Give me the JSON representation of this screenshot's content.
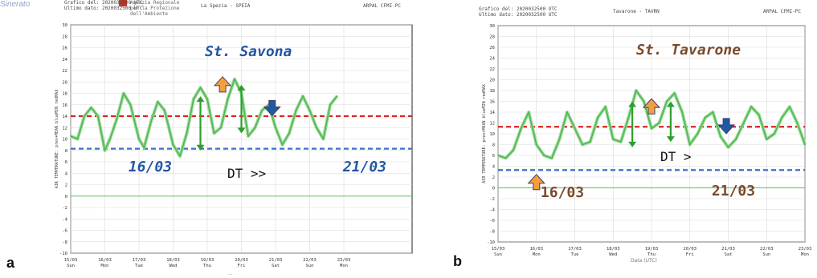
{
  "corner_text": "Sinerato",
  "colors": {
    "series": "#44bb44",
    "band": "#9bd59b",
    "red_line": "#dd2222",
    "blue_line": "#3b6fd0",
    "zero_line": "#5cc05c",
    "arrow_green": "#2e9e2e",
    "arrow_orange": "#f2a03c",
    "arrow_blue": "#1e5aa0",
    "label_blue": "#2456a4",
    "label_brown": "#7a4a2a"
  },
  "panels": [
    {
      "id": "a",
      "mark": "a",
      "header": {
        "left": "Grafico del: 2020032500 UTC\nUltimo dato: 2020032500 UTC",
        "org": "Agenzia Regionale\nper la Protezione\ndell'Ambiente",
        "center": "La Spezia - SPEIA",
        "right": "ARPAL CFMI-PC"
      },
      "bottom_note": "...",
      "annotations": {
        "station": "St. Savona",
        "date_start": "16/03",
        "date_end": "21/03",
        "dt": "DT >>"
      },
      "chart_data": {
        "type": "line",
        "ylabel": "AIR TEMPERATURE: prev+MEAN blueMIN redMAX",
        "ylim": [
          -10,
          30
        ],
        "yticks": [
          -10,
          -8,
          -6,
          -4,
          -2,
          0,
          2,
          4,
          6,
          8,
          10,
          12,
          14,
          16,
          18,
          20,
          22,
          24,
          26,
          28,
          30
        ],
        "xlim": [
          0,
          10
        ],
        "xticks": [
          {
            "x": 0,
            "date": "15/03",
            "day": "Sun"
          },
          {
            "x": 1,
            "date": "16/03",
            "day": "Mon"
          },
          {
            "x": 2,
            "date": "17/03",
            "day": "Tue"
          },
          {
            "x": 3,
            "date": "18/03",
            "day": "Wed"
          },
          {
            "x": 4,
            "date": "19/03",
            "day": "Thu"
          },
          {
            "x": 5,
            "date": "20/03",
            "day": "Fri"
          },
          {
            "x": 6,
            "date": "21/03",
            "day": "Sat"
          },
          {
            "x": 7,
            "date": "22/03",
            "day": "Sun"
          },
          {
            "x": 8,
            "date": "23/03",
            "day": "Mon"
          }
        ],
        "grid": true,
        "hlines": {
          "red": 14,
          "blue": 8.3,
          "zero": 0
        },
        "series": [
          {
            "x": [
              0,
              0.2,
              0.4,
              0.6,
              0.8,
              1,
              1.15,
              1.35,
              1.55,
              1.75,
              2,
              2.15,
              2.35,
              2.55,
              2.75,
              3,
              3.2,
              3.4,
              3.6,
              3.8,
              4,
              4.2,
              4.4,
              4.6,
              4.8,
              5,
              5.2,
              5.4,
              5.6,
              5.8,
              6,
              6.2,
              6.4,
              6.6,
              6.8,
              7,
              7.2,
              7.4,
              7.6,
              7.8
            ],
            "y": [
              10.5,
              10,
              14,
              15.5,
              14,
              8,
              10,
              13.5,
              18,
              16,
              10,
              8.5,
              13,
              16.5,
              15,
              9,
              7,
              11,
              17,
              19,
              17,
              11,
              12,
              17,
              20.5,
              18,
              10.5,
              12,
              15,
              16,
              12,
              9,
              11,
              15,
              17.5,
              15,
              12,
              10,
              16,
              17.5
            ]
          }
        ]
      },
      "arrows": [
        {
          "type": "double",
          "color": "green",
          "x": 3.8,
          "y1": 8,
          "y2": 17.5
        },
        {
          "type": "double",
          "color": "green",
          "x": 5,
          "y1": 11,
          "y2": 19.5
        },
        {
          "type": "up",
          "color": "orange",
          "x": 4.45,
          "y": 19.5
        },
        {
          "type": "down",
          "color": "blue",
          "x": 5.9,
          "y": 15.5
        }
      ]
    },
    {
      "id": "b",
      "mark": "b",
      "header": {
        "left": "Grafico del: 2020032500 UTC\nUltimo dato: 2020032500 UTC",
        "center": "Tavarone - TAVRN",
        "right": "ARPAL CFMI-PC"
      },
      "bottom_note": "Data (UTC)",
      "annotations": {
        "station": "St. Tavarone",
        "date_start": "16/03",
        "date_end": "21/03",
        "dt": "DT >"
      },
      "chart_data": {
        "type": "line",
        "ylabel": "AIR TEMPERATURE: prev+MEAN blueMIN redMAX",
        "ylim": [
          -10,
          30
        ],
        "yticks": [
          -10,
          -8,
          -6,
          -4,
          -2,
          0,
          2,
          4,
          6,
          8,
          10,
          12,
          14,
          16,
          18,
          20,
          22,
          24,
          26,
          28,
          30
        ],
        "xlim": [
          0,
          8
        ],
        "xticks": [
          {
            "x": 0,
            "date": "15/03",
            "day": "Sun"
          },
          {
            "x": 1,
            "date": "16/03",
            "day": "Mon"
          },
          {
            "x": 2,
            "date": "17/03",
            "day": "Tue"
          },
          {
            "x": 3,
            "date": "18/03",
            "day": "Wed"
          },
          {
            "x": 4,
            "date": "19/03",
            "day": "Thu"
          },
          {
            "x": 5,
            "date": "20/03",
            "day": "Fri"
          },
          {
            "x": 6,
            "date": "21/03",
            "day": "Sat"
          },
          {
            "x": 7,
            "date": "22/03",
            "day": "Sun"
          },
          {
            "x": 8,
            "date": "23/03",
            "day": "Mon"
          }
        ],
        "grid": true,
        "hlines": {
          "red": 11.3,
          "blue": 3.3,
          "zero": 0
        },
        "series": [
          {
            "x": [
              0,
              0.2,
              0.4,
              0.6,
              0.8,
              1,
              1.2,
              1.4,
              1.6,
              1.8,
              2,
              2.2,
              2.4,
              2.6,
              2.8,
              3,
              3.2,
              3.4,
              3.6,
              3.8,
              4,
              4.2,
              4.4,
              4.6,
              4.8,
              5,
              5.2,
              5.4,
              5.6,
              5.8,
              6,
              6.2,
              6.4,
              6.6,
              6.8,
              7,
              7.2,
              7.4,
              7.6,
              7.8,
              8
            ],
            "y": [
              6,
              5.5,
              7,
              11,
              14,
              8,
              6,
              5.5,
              9,
              14,
              11,
              8,
              8.5,
              13,
              15,
              9,
              8.5,
              13,
              18,
              16,
              11,
              12,
              16,
              17.5,
              14,
              8,
              10,
              13,
              14,
              9.5,
              7.5,
              9,
              12,
              15,
              13.5,
              9,
              10,
              13,
              15,
              12,
              8
            ]
          }
        ]
      },
      "arrows": [
        {
          "type": "double",
          "color": "green",
          "x": 3.5,
          "y1": 7.5,
          "y2": 16
        },
        {
          "type": "double",
          "color": "green",
          "x": 4.5,
          "y1": 8.5,
          "y2": 16
        },
        {
          "type": "up",
          "color": "orange",
          "x": 4,
          "y": 15
        },
        {
          "type": "up",
          "color": "orange",
          "x": 1,
          "y": 1
        },
        {
          "type": "down",
          "color": "blue",
          "x": 5.95,
          "y": 11.5
        }
      ]
    }
  ]
}
